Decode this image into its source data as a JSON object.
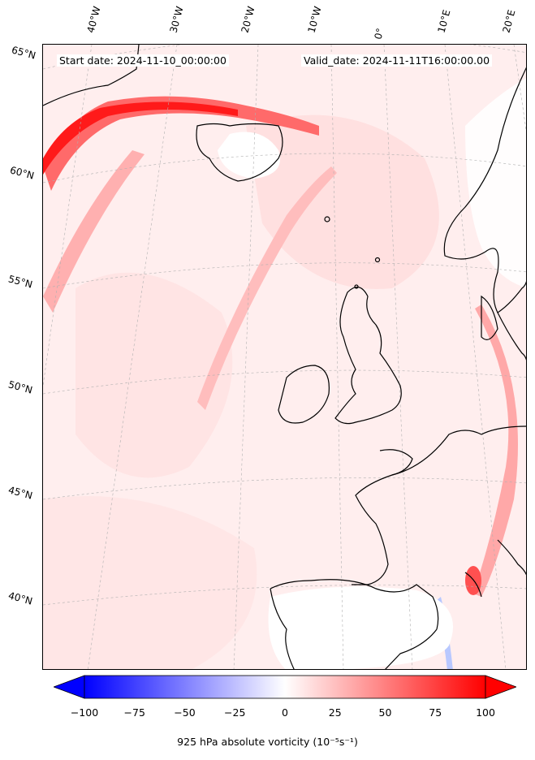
{
  "header": {
    "start_date": "Start date: 2024-11-10_00:00:00",
    "valid_date": "Valid_date: 2024-11-11T16:00:00.00"
  },
  "longitude_labels": [
    "40°W",
    "30°W",
    "20°W",
    "10°W",
    "0°",
    "10°E",
    "20°E"
  ],
  "latitude_labels": [
    "65°N",
    "60°N",
    "55°N",
    "50°N",
    "45°N",
    "40°N"
  ],
  "colorbar": {
    "ticks": [
      "−100",
      "−75",
      "−50",
      "−25",
      "0",
      "25",
      "50",
      "75",
      "100"
    ],
    "min": -100,
    "max": 100,
    "colormap": "bwr",
    "title": "925 hPa absolute vorticity (10⁻⁵s⁻¹)",
    "extend": "both"
  },
  "colors": {
    "background_field": "#fff0f0",
    "strong_positive": "#ff1010",
    "negative": "#c8d4ff",
    "coastline": "#000000"
  }
}
